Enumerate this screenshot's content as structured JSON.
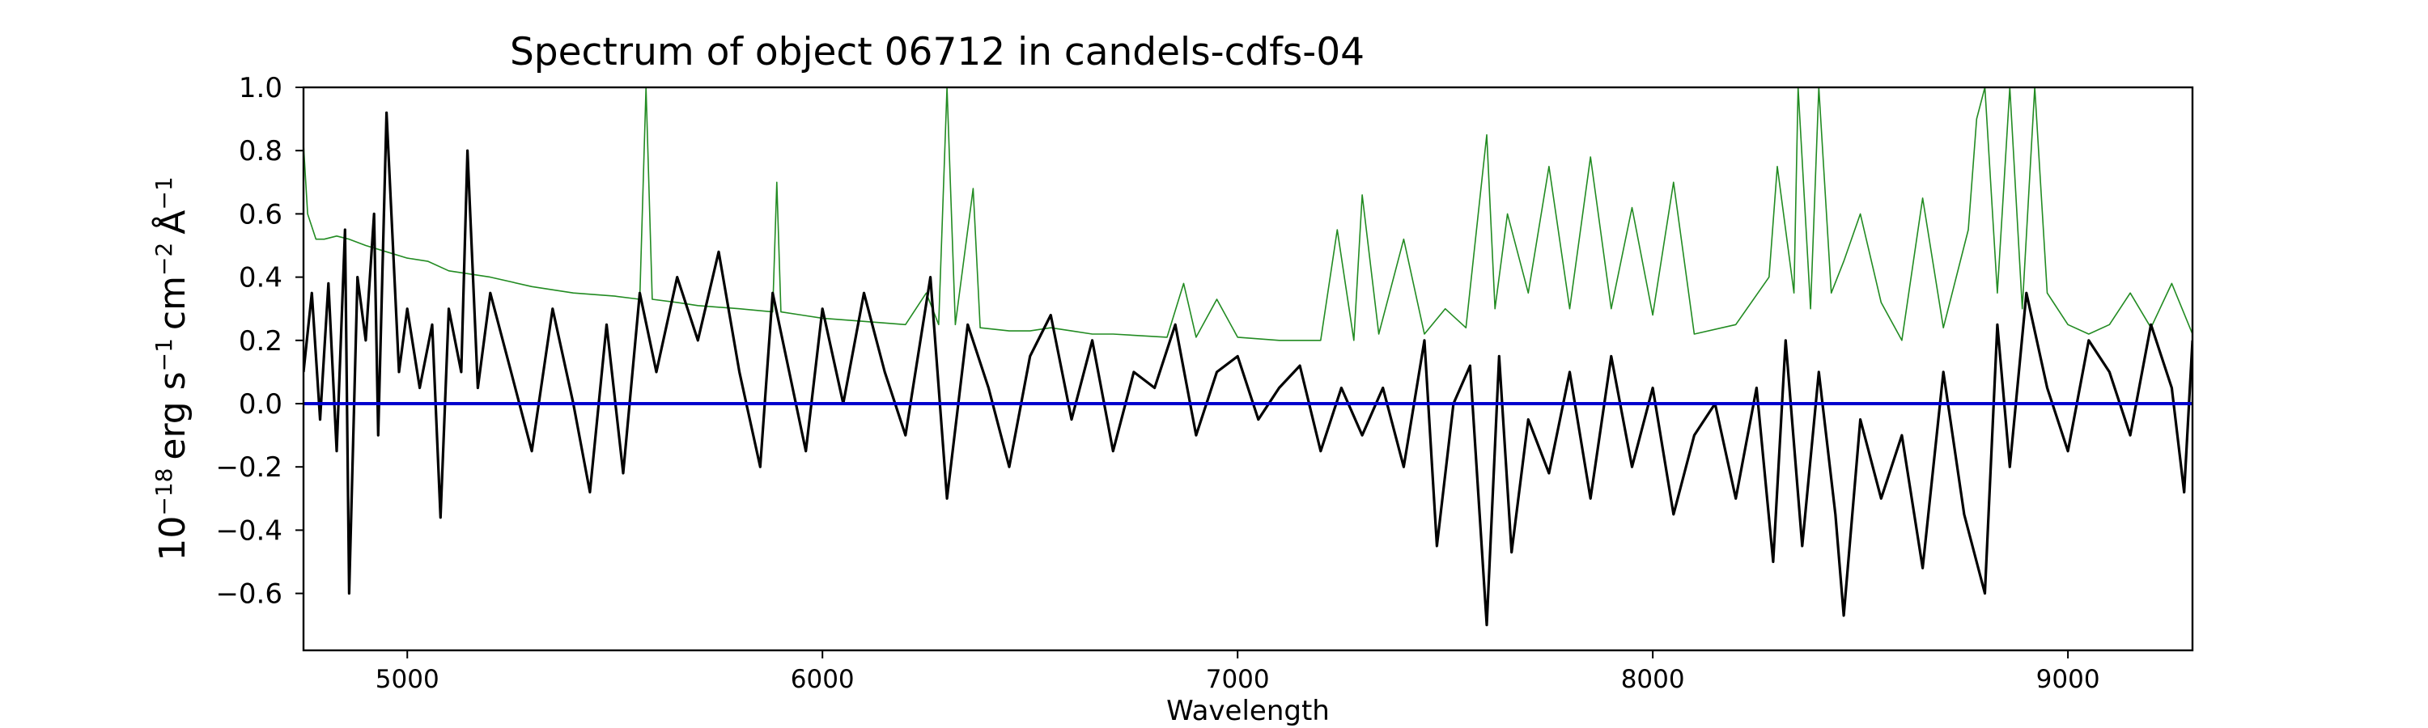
{
  "chart_data": {
    "type": "line",
    "title": "Spectrum of object 06712 in candels-cdfs-04",
    "xlabel": "Wavelength",
    "ylabel": {
      "base": "10",
      "exp": "−18",
      "unit_erg": "erg s",
      "exp_s": "−1",
      "unit_cm": "cm",
      "exp_cm": "−2",
      "unit_a": "Å",
      "exp_a": "−1"
    },
    "xlim": [
      4750,
      9300
    ],
    "ylim": [
      -0.78,
      1.0
    ],
    "x_ticks": [
      5000,
      6000,
      7000,
      8000,
      9000
    ],
    "x_tick_labels": [
      "5000",
      "6000",
      "7000",
      "8000",
      "9000"
    ],
    "y_ticks": [
      -0.6,
      -0.4,
      -0.2,
      0.0,
      0.2,
      0.4,
      0.6,
      0.8,
      1.0
    ],
    "y_tick_labels": [
      "−0.6",
      "−0.4",
      "−0.2",
      "0.0",
      "0.2",
      "0.4",
      "0.6",
      "0.8",
      "1.0"
    ],
    "grid": false,
    "series": [
      {
        "color": "#228b22",
        "x": [
          4750,
          4760,
          4780,
          4800,
          4830,
          4860,
          4900,
          4950,
          5000,
          5050,
          5100,
          5150,
          5200,
          5300,
          5400,
          5500,
          5560,
          5575,
          5590,
          5650,
          5700,
          5800,
          5880,
          5890,
          5900,
          5950,
          6000,
          6100,
          6200,
          6250,
          6280,
          6300,
          6320,
          6363,
          6380,
          6450,
          6500,
          6550,
          6600,
          6650,
          6700,
          6830,
          6870,
          6900,
          6950,
          7000,
          7100,
          7200,
          7240,
          7280,
          7300,
          7340,
          7400,
          7450,
          7500,
          7550,
          7600,
          7620,
          7650,
          7700,
          7750,
          7800,
          7850,
          7900,
          7950,
          8000,
          8050,
          8100,
          8200,
          8280,
          8300,
          8340,
          8350,
          8380,
          8400,
          8430,
          8460,
          8500,
          8550,
          8600,
          8650,
          8700,
          8760,
          8780,
          8800,
          8830,
          8860,
          8890,
          8920,
          8950,
          9000,
          9050,
          9100,
          9150,
          9200,
          9250,
          9300
        ],
        "y": [
          0.82,
          0.6,
          0.52,
          0.52,
          0.53,
          0.52,
          0.5,
          0.48,
          0.46,
          0.45,
          0.42,
          0.41,
          0.4,
          0.37,
          0.35,
          0.34,
          0.33,
          1.0,
          0.33,
          0.32,
          0.31,
          0.3,
          0.29,
          0.7,
          0.29,
          0.28,
          0.27,
          0.26,
          0.25,
          0.35,
          0.25,
          1.0,
          0.25,
          0.68,
          0.24,
          0.23,
          0.23,
          0.24,
          0.23,
          0.22,
          0.22,
          0.21,
          0.38,
          0.21,
          0.33,
          0.21,
          0.2,
          0.2,
          0.55,
          0.2,
          0.66,
          0.22,
          0.52,
          0.22,
          0.3,
          0.24,
          0.85,
          0.3,
          0.6,
          0.35,
          0.75,
          0.3,
          0.78,
          0.3,
          0.62,
          0.28,
          0.7,
          0.22,
          0.25,
          0.4,
          0.75,
          0.35,
          1.0,
          0.3,
          1.0,
          0.35,
          0.45,
          0.6,
          0.32,
          0.2,
          0.65,
          0.24,
          0.55,
          0.9,
          1.0,
          0.35,
          1.0,
          0.3,
          1.0,
          0.35,
          0.25,
          0.22,
          0.25,
          0.35,
          0.24,
          0.38,
          0.22
        ]
      },
      {
        "color": "#000000",
        "x": [
          4750,
          4770,
          4790,
          4810,
          4830,
          4850,
          4860,
          4880,
          4900,
          4920,
          4930,
          4950,
          4980,
          5000,
          5030,
          5060,
          5080,
          5100,
          5130,
          5145,
          5170,
          5200,
          5250,
          5300,
          5350,
          5400,
          5440,
          5480,
          5520,
          5560,
          5600,
          5650,
          5700,
          5750,
          5800,
          5850,
          5880,
          5920,
          5960,
          6000,
          6050,
          6100,
          6150,
          6200,
          6260,
          6300,
          6350,
          6400,
          6450,
          6500,
          6550,
          6600,
          6650,
          6700,
          6750,
          6800,
          6850,
          6900,
          6950,
          7000,
          7050,
          7100,
          7150,
          7200,
          7250,
          7300,
          7350,
          7400,
          7450,
          7480,
          7520,
          7560,
          7600,
          7630,
          7660,
          7700,
          7750,
          7800,
          7850,
          7900,
          7950,
          8000,
          8050,
          8100,
          8150,
          8200,
          8250,
          8290,
          8320,
          8360,
          8400,
          8440,
          8460,
          8500,
          8550,
          8600,
          8650,
          8700,
          8750,
          8800,
          8830,
          8860,
          8900,
          8950,
          9000,
          9050,
          9100,
          9150,
          9200,
          9250,
          9280,
          9300
        ],
        "y": [
          0.1,
          0.35,
          -0.05,
          0.38,
          -0.15,
          0.55,
          -0.6,
          0.4,
          0.2,
          0.6,
          -0.1,
          0.92,
          0.1,
          0.3,
          0.05,
          0.25,
          -0.36,
          0.3,
          0.1,
          0.8,
          0.05,
          0.35,
          0.1,
          -0.15,
          0.3,
          0.0,
          -0.28,
          0.25,
          -0.22,
          0.35,
          0.1,
          0.4,
          0.2,
          0.48,
          0.1,
          -0.2,
          0.35,
          0.1,
          -0.15,
          0.3,
          0.0,
          0.35,
          0.1,
          -0.1,
          0.4,
          -0.3,
          0.25,
          0.05,
          -0.2,
          0.15,
          0.28,
          -0.05,
          0.2,
          -0.15,
          0.1,
          0.05,
          0.25,
          -0.1,
          0.1,
          0.15,
          -0.05,
          0.05,
          0.12,
          -0.15,
          0.05,
          -0.1,
          0.05,
          -0.2,
          0.2,
          -0.45,
          0.0,
          0.12,
          -0.7,
          0.15,
          -0.47,
          -0.05,
          -0.22,
          0.1,
          -0.3,
          0.15,
          -0.2,
          0.05,
          -0.35,
          -0.1,
          0.0,
          -0.3,
          0.05,
          -0.5,
          0.2,
          -0.45,
          0.1,
          -0.35,
          -0.67,
          -0.05,
          -0.3,
          -0.1,
          -0.52,
          0.1,
          -0.35,
          -0.6,
          0.25,
          -0.2,
          0.35,
          0.05,
          -0.15,
          0.2,
          0.1,
          -0.1,
          0.25,
          0.05,
          -0.28,
          0.2
        ]
      },
      {
        "color": "#0000cd",
        "x": [
          4750,
          9300
        ],
        "y": [
          0.0,
          0.0
        ]
      }
    ]
  }
}
